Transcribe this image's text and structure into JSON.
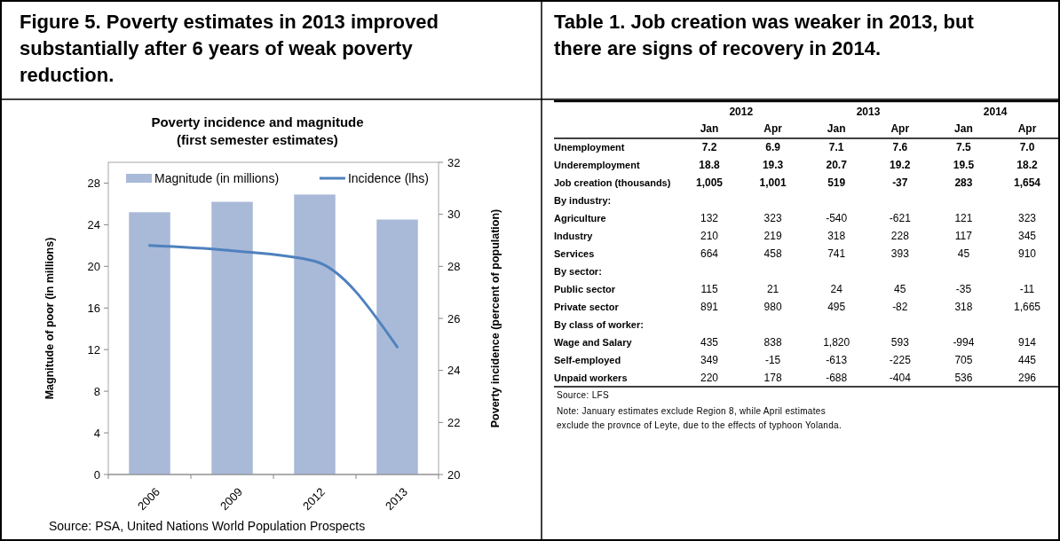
{
  "chart_data": [
    {
      "type": "bar",
      "title": "Figure 5. Poverty estimates in 2013 improved substantially after 6 years of weak poverty reduction.",
      "subtitle": "Poverty incidence and magnitude\n(first semester estimates)",
      "ylabel": "Magnitude of poor (in millions)",
      "y2label": "Poverty incidence (percent of population)",
      "categories": [
        "2006",
        "2009",
        "2012",
        "2013"
      ],
      "series": [
        {
          "name": "Magnitude (in millions)",
          "type": "bar",
          "color": "#a9b9d8",
          "values": [
            25.2,
            26.2,
            26.9,
            24.5
          ]
        },
        {
          "name": "Incidence (lhs)",
          "type": "line",
          "axis": "y2",
          "color": "#4f81bd",
          "values": [
            28.8,
            28.6,
            28.2,
            24.9
          ]
        }
      ],
      "ylim": [
        0,
        30
      ],
      "yticks": [
        0,
        4,
        8,
        12,
        16,
        20,
        24,
        28
      ],
      "y2lim": [
        20,
        32
      ],
      "y2ticks": [
        20,
        22,
        24,
        26,
        28,
        30,
        32
      ],
      "grid": false,
      "legend": "top",
      "marker": "none",
      "line_style": "solid",
      "annotations": [
        "Source: PSA, United Nations World Population Prospects"
      ]
    },
    {
      "type": "heatmap",
      "title": "Table 1. Job creation was weaker in 2013, but there are signs of recovery in 2014.",
      "categories": [
        "Jan",
        "Apr",
        "Jan",
        "Apr",
        "Jan",
        "Apr"
      ],
      "y_categories": [
        "Unemployment",
        "Underemployment",
        "Job creation (thousands)",
        "By industry:",
        "Agriculture",
        "Industry",
        "Services",
        "By sector:",
        "Public sector",
        "Private sector",
        "By class of worker:",
        "Wage and Salary",
        "Self-employed",
        "Unpaid workers"
      ],
      "cells": [
        [
          7.2,
          6.9,
          7.1,
          7.6,
          7.5,
          7.0
        ],
        [
          18.8,
          19.3,
          20.7,
          19.2,
          19.5,
          18.2
        ],
        [
          1005,
          1001,
          519,
          -37,
          283,
          1654
        ],
        [
          null,
          null,
          null,
          null,
          null,
          null
        ],
        [
          132,
          323,
          -540,
          -621,
          121,
          323
        ],
        [
          210,
          219,
          318,
          228,
          117,
          345
        ],
        [
          664,
          458,
          741,
          393,
          45,
          910
        ],
        [
          null,
          null,
          null,
          null,
          null,
          null
        ],
        [
          115,
          21,
          24,
          45,
          -35,
          -11
        ],
        [
          891,
          980,
          495,
          -82,
          318,
          1665
        ],
        [
          null,
          null,
          null,
          null,
          null,
          null
        ],
        [
          435,
          838,
          1820,
          593,
          -994,
          914
        ],
        [
          349,
          -15,
          -613,
          -225,
          705,
          445
        ],
        [
          220,
          178,
          -688,
          -404,
          536,
          296
        ]
      ],
      "cell_labels": [
        [
          "7.2",
          "6.9",
          "7.1",
          "7.6",
          "7.5",
          "7.0"
        ],
        [
          "18.8",
          "19.3",
          "20.7",
          "19.2",
          "19.5",
          "18.2"
        ],
        [
          "1,005",
          "1,001",
          "519",
          "-37",
          "283",
          "1,654"
        ],
        [
          null,
          null,
          null,
          null,
          null,
          null
        ],
        [
          "132",
          "323",
          "-540",
          "-621",
          "121",
          "323"
        ],
        [
          "210",
          "219",
          "318",
          "228",
          "117",
          "345"
        ],
        [
          "664",
          "458",
          "741",
          "393",
          "45",
          "910"
        ],
        [
          null,
          null,
          null,
          null,
          null,
          null
        ],
        [
          "115",
          "21",
          "24",
          "45",
          "-35",
          "-11"
        ],
        [
          "891",
          "980",
          "495",
          "-82",
          "318",
          "1,665"
        ],
        [
          null,
          null,
          null,
          null,
          null,
          null
        ],
        [
          "435",
          "838",
          "1,820",
          "593",
          "-994",
          "914"
        ],
        [
          "349",
          "-15",
          "-613",
          "-225",
          "705",
          "445"
        ],
        [
          "220",
          "178",
          "-688",
          "-404",
          "536",
          "296"
        ]
      ],
      "data_labels": true,
      "annotations": [
        "2012",
        "2013",
        "2014",
        "Source: LFS",
        "Note: January estimates exclude Region 8, while April estimates\nexclude the provnce of Leyte, due to the effects of typhoon Yolanda."
      ]
    }
  ]
}
